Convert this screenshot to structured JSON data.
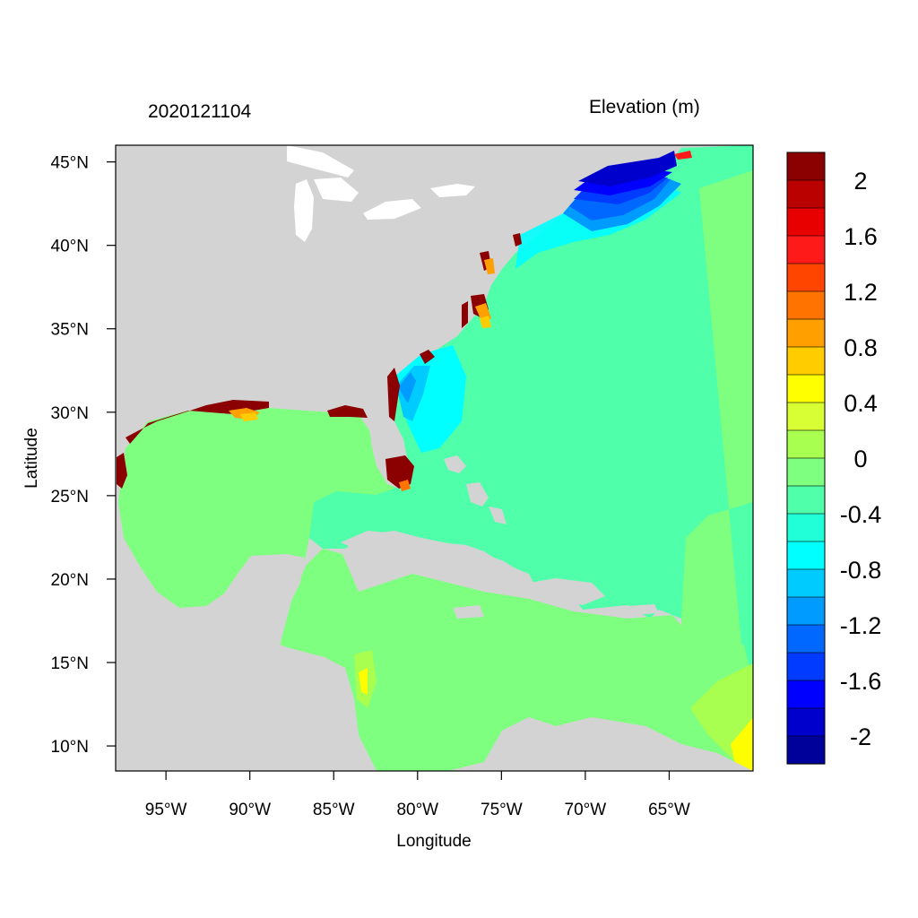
{
  "header": {
    "timestamp": "2020121104",
    "variable": "Elevation (m)"
  },
  "map": {
    "xlabel": "Longitude",
    "ylabel": "Latitude",
    "lon_range": [
      -98,
      -60
    ],
    "lat_range": [
      8.5,
      46
    ],
    "lon_ticks": [
      {
        "value": -95,
        "label": "95°W"
      },
      {
        "value": -90,
        "label": "90°W"
      },
      {
        "value": -85,
        "label": "85°W"
      },
      {
        "value": -80,
        "label": "80°W"
      },
      {
        "value": -75,
        "label": "75°W"
      },
      {
        "value": -70,
        "label": "70°W"
      },
      {
        "value": -65,
        "label": "65°W"
      }
    ],
    "lat_ticks": [
      {
        "value": 45,
        "label": "45°N"
      },
      {
        "value": 40,
        "label": "40°N"
      },
      {
        "value": 35,
        "label": "35°N"
      },
      {
        "value": 30,
        "label": "30°N"
      },
      {
        "value": 25,
        "label": "25°N"
      },
      {
        "value": 20,
        "label": "20°N"
      },
      {
        "value": 15,
        "label": "15°N"
      },
      {
        "value": 10,
        "label": "10°N"
      }
    ],
    "land_color": "#d3d3d3"
  },
  "colorbar": {
    "colors": [
      "#8b0000",
      "#bb0000",
      "#e80000",
      "#ff1a1a",
      "#ff4500",
      "#ff7400",
      "#ff9f00",
      "#ffcc00",
      "#ffff00",
      "#d8ff33",
      "#a8ff4f",
      "#7fff7f",
      "#4fffaa",
      "#21ffd8",
      "#00ffff",
      "#00cbff",
      "#009bff",
      "#0068ff",
      "#003bff",
      "#0000ff",
      "#0000cd",
      "#00009a"
    ],
    "labels": [
      {
        "label": "2",
        "value": 2.0
      },
      {
        "label": "1.6",
        "value": 1.6
      },
      {
        "label": "1.2",
        "value": 1.2
      },
      {
        "label": "0.8",
        "value": 0.8
      },
      {
        "label": "0.4",
        "value": 0.4
      },
      {
        "label": "0",
        "value": 0
      },
      {
        "label": "-0.4",
        "value": -0.4
      },
      {
        "label": "-0.8",
        "value": -0.8
      },
      {
        "label": "-1.2",
        "value": -1.2
      },
      {
        "label": "-1.6",
        "value": -1.6
      },
      {
        "label": "-2",
        "value": -2.0
      }
    ]
  }
}
